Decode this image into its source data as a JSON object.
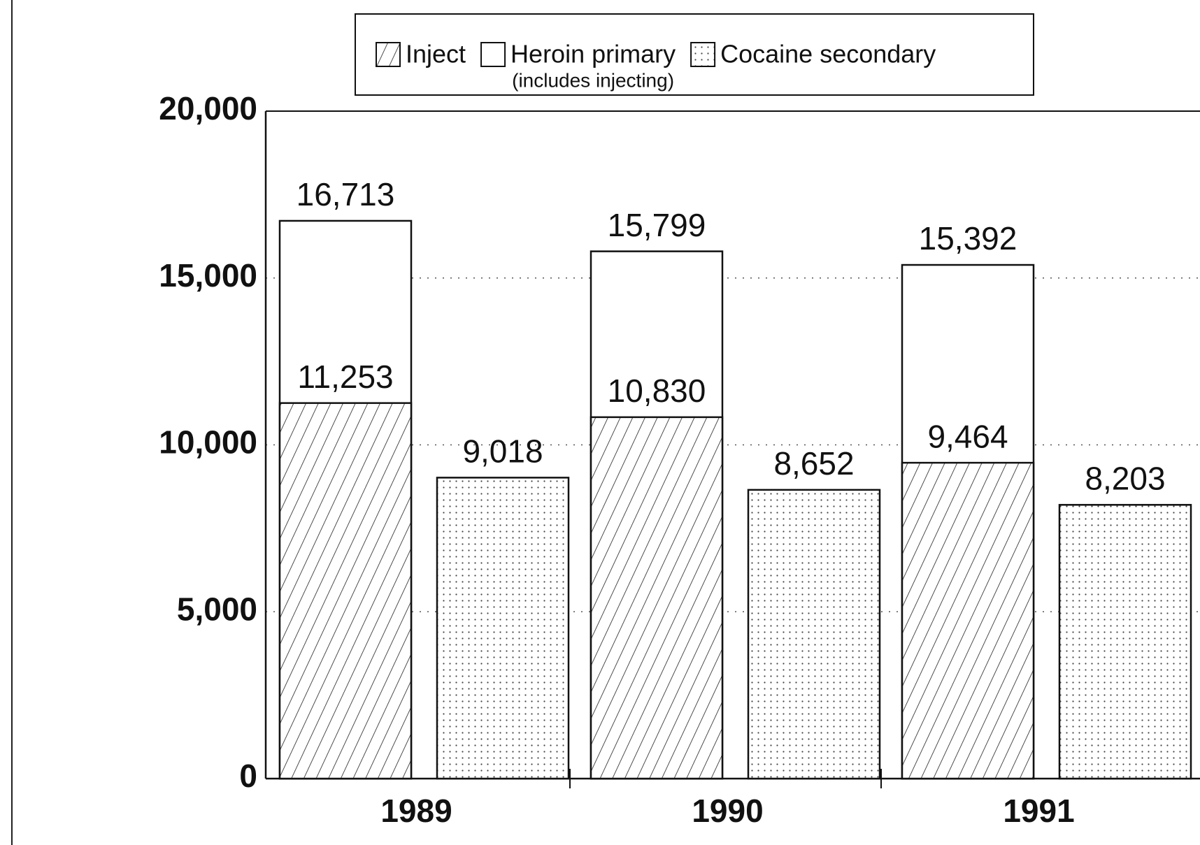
{
  "chart_data": {
    "type": "overlap_bar",
    "categories": [
      "1989",
      "1990",
      "1991"
    ],
    "series": [
      {
        "name": "Heroin primary",
        "note": "(includes injecting)",
        "color": "#ffffff",
        "pattern": "none",
        "group": 0,
        "values": [
          16713,
          15799,
          15392
        ],
        "value_labels": [
          "16,713",
          "15,799",
          "15,392"
        ]
      },
      {
        "name": "Inject",
        "color": "#ffffff",
        "pattern": "hatch",
        "group": 0,
        "values": [
          11253,
          10830,
          9464
        ],
        "value_labels": [
          "11,253",
          "10,830",
          "9,464"
        ]
      },
      {
        "name": "Cocaine secondary",
        "color": "#ffffff",
        "pattern": "dots",
        "group": 1,
        "values": [
          9018,
          8652,
          8203
        ],
        "value_labels": [
          "9,018",
          "8,652",
          "8,203"
        ]
      }
    ],
    "legend_order": [
      1,
      0,
      2
    ],
    "ylim": [
      0,
      20000
    ],
    "yticks": [
      0,
      {
        "value": 5000,
        "label": "5,000"
      },
      {
        "value": 10000,
        "label": "10,000"
      },
      {
        "value": 15000,
        "label": "15,000"
      },
      {
        "value": 20000,
        "label": "20,000"
      }
    ],
    "grid": true
  }
}
